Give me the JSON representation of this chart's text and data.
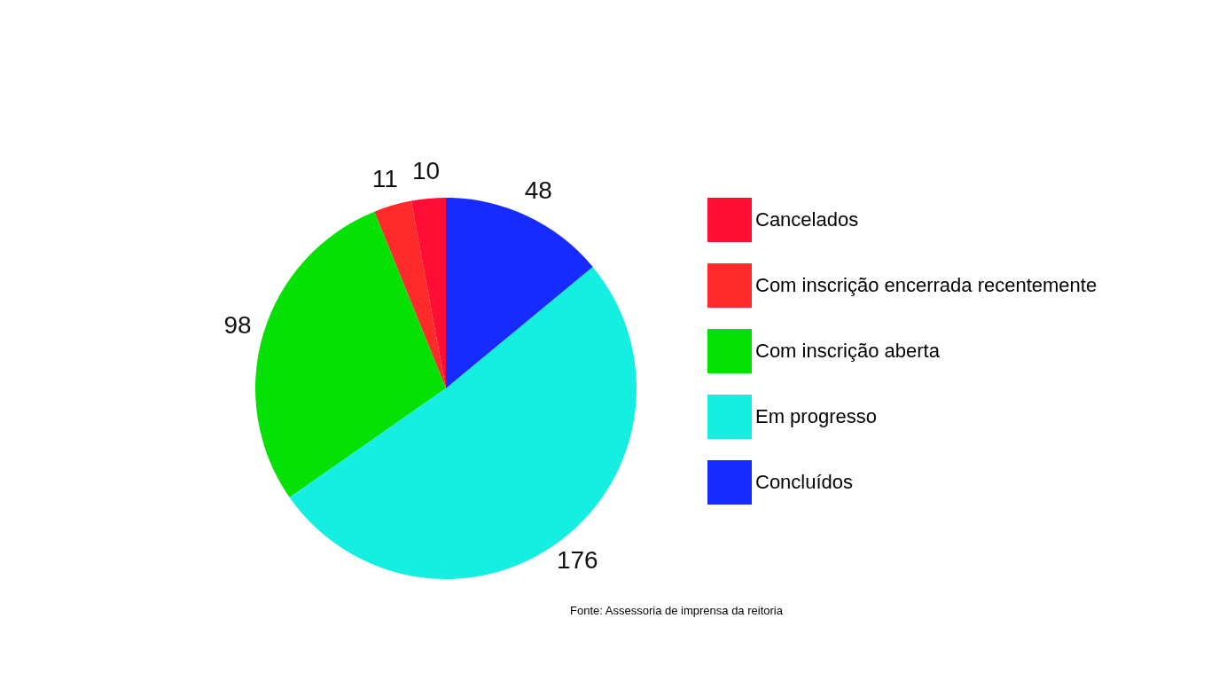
{
  "chart_data": {
    "type": "pie",
    "categories": [
      "Cancelados",
      "Com inscrição encerrada recentemente",
      "Com inscrição aberta",
      "Em progresso",
      "Concluídos"
    ],
    "values": [
      10,
      11,
      98,
      176,
      48
    ],
    "colors": [
      "#ff0d35",
      "#ff2a2a",
      "#05e005",
      "#15efe2",
      "#172bff"
    ],
    "data_labels": true,
    "legend": "right",
    "annotations": [
      "Fonte: Assessoria de imprensa da reitoria"
    ]
  }
}
